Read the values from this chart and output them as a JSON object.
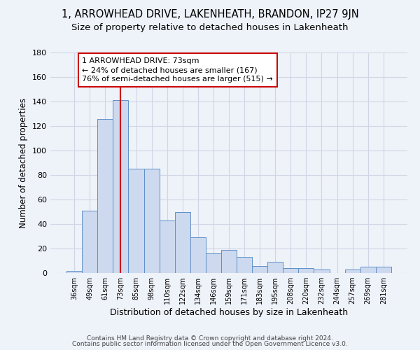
{
  "title": "1, ARROWHEAD DRIVE, LAKENHEATH, BRANDON, IP27 9JN",
  "subtitle": "Size of property relative to detached houses in Lakenheath",
  "xlabel": "Distribution of detached houses by size in Lakenheath",
  "ylabel": "Number of detached properties",
  "bar_labels": [
    "36sqm",
    "49sqm",
    "61sqm",
    "73sqm",
    "85sqm",
    "98sqm",
    "110sqm",
    "122sqm",
    "134sqm",
    "146sqm",
    "159sqm",
    "171sqm",
    "183sqm",
    "195sqm",
    "208sqm",
    "220sqm",
    "232sqm",
    "244sqm",
    "257sqm",
    "269sqm",
    "281sqm"
  ],
  "bar_values": [
    2,
    51,
    126,
    141,
    85,
    85,
    43,
    50,
    29,
    16,
    19,
    13,
    6,
    9,
    4,
    4,
    3,
    0,
    3,
    5,
    5
  ],
  "bar_color": "#ccd9ee",
  "bar_edge_color": "#6090c8",
  "vline_x": 3,
  "vline_color": "#cc0000",
  "ylim": [
    0,
    180
  ],
  "yticks": [
    0,
    20,
    40,
    60,
    80,
    100,
    120,
    140,
    160,
    180
  ],
  "annotation_title": "1 ARROWHEAD DRIVE: 73sqm",
  "annotation_line1": "← 24% of detached houses are smaller (167)",
  "annotation_line2": "76% of semi-detached houses are larger (515) →",
  "annotation_box_color": "#cc0000",
  "footer_line1": "Contains HM Land Registry data © Crown copyright and database right 2024.",
  "footer_line2": "Contains public sector information licensed under the Open Government Licence v3.0.",
  "background_color": "#eef2f9",
  "grid_color": "#d8dce8",
  "title_fontsize": 10.5,
  "subtitle_fontsize": 9.5
}
